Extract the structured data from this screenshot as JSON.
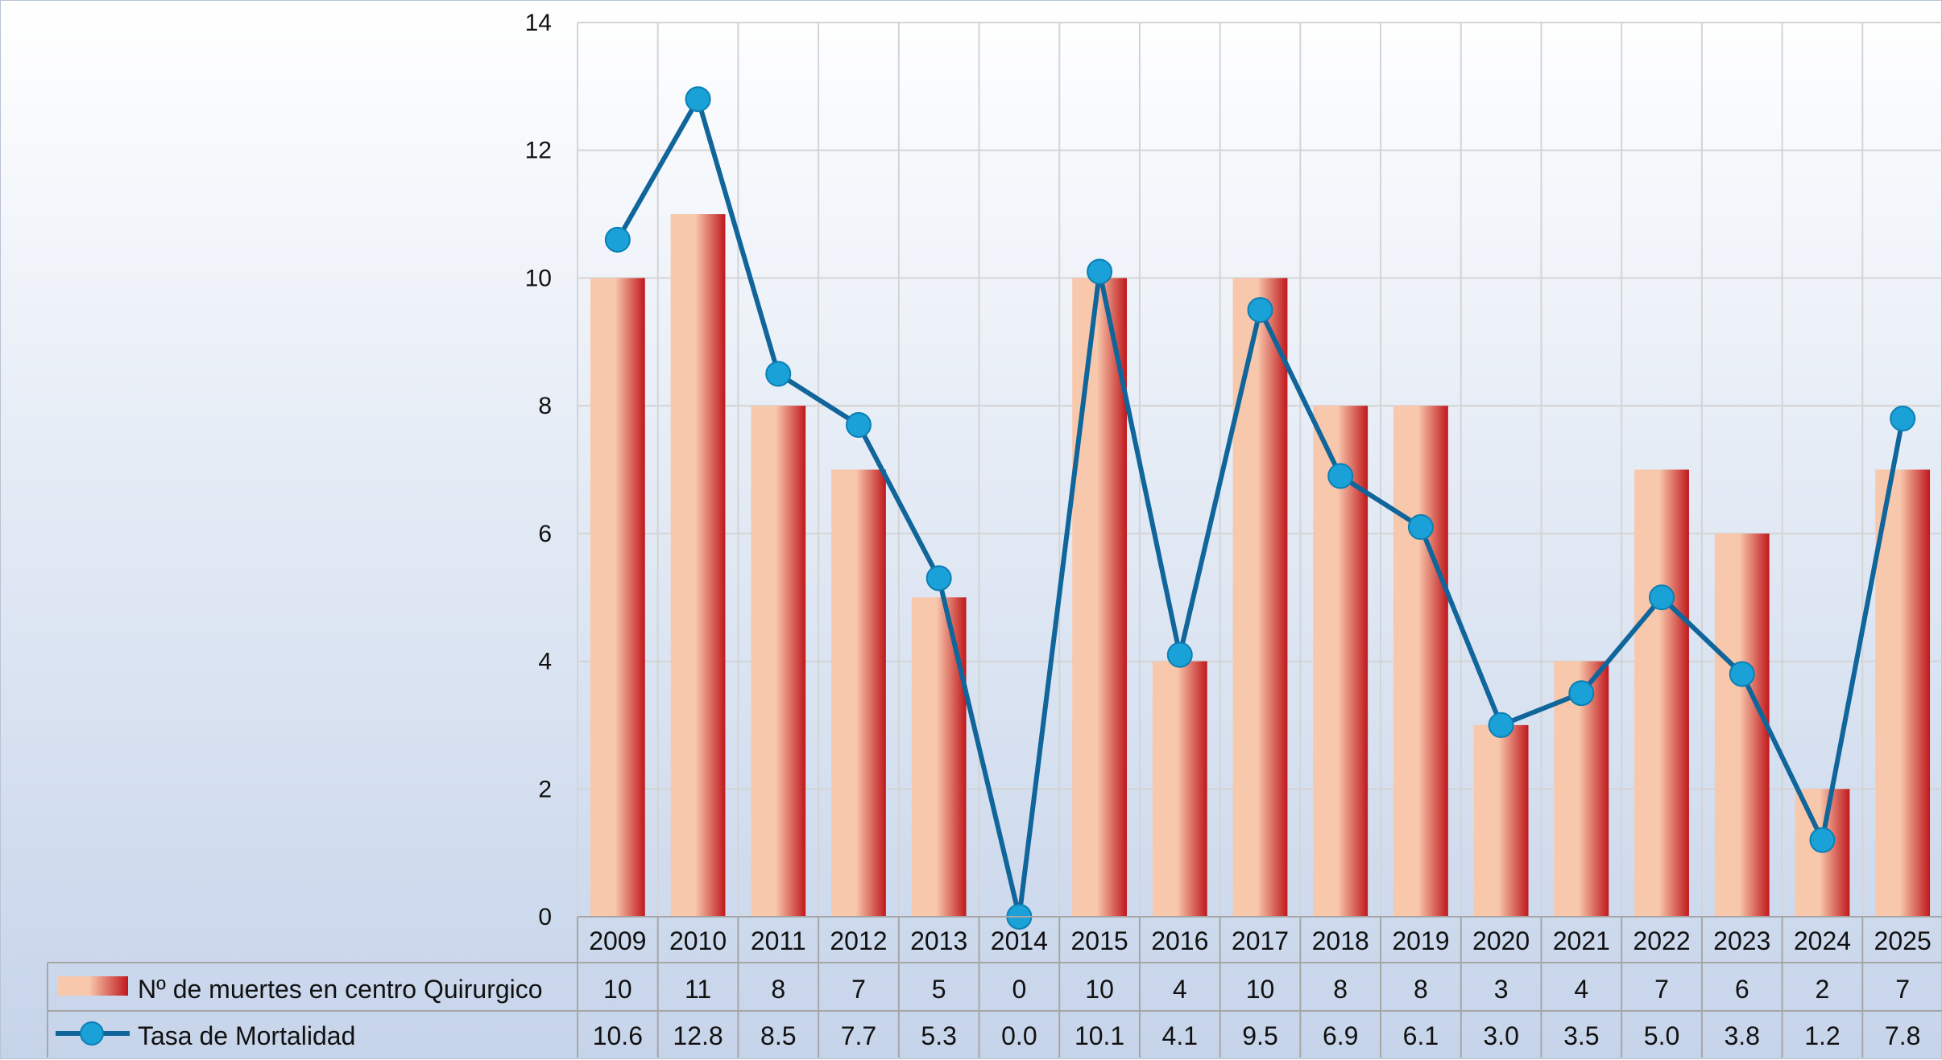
{
  "chart_data": {
    "type": "bar",
    "categories": [
      "2009",
      "2010",
      "2011",
      "2012",
      "2013",
      "2014",
      "2015",
      "2016",
      "2017",
      "2018",
      "2019",
      "2020",
      "2021",
      "2022",
      "2023",
      "2024",
      "2025"
    ],
    "series": [
      {
        "name": "Nº de muertes en centro Quirurgico",
        "type": "bar",
        "values": [
          10,
          11,
          8,
          7,
          5,
          0,
          10,
          4,
          10,
          8,
          8,
          3,
          4,
          7,
          6,
          2,
          7
        ],
        "labels": [
          "10",
          "11",
          "8",
          "7",
          "5",
          "0",
          "10",
          "4",
          "10",
          "8",
          "8",
          "3",
          "4",
          "7",
          "6",
          "2",
          "7"
        ],
        "color": "#c0181c",
        "color_light": "#f8c8ac"
      },
      {
        "name": "Tasa de Mortalidad",
        "type": "line",
        "values": [
          10.6,
          12.8,
          8.5,
          7.7,
          5.3,
          0.0,
          10.1,
          4.1,
          9.5,
          6.9,
          6.1,
          3.0,
          3.5,
          5.0,
          3.8,
          1.2,
          7.8
        ],
        "labels": [
          "10.6",
          "12.8",
          "8.5",
          "7.7",
          "5.3",
          "0.0",
          "10.1",
          "4.1",
          "9.5",
          "6.9",
          "6.1",
          "3.0",
          "3.5",
          "5.0",
          "3.8",
          "1.2",
          "7.8"
        ],
        "color": "#10659a",
        "marker_color": "#1aa1d8"
      }
    ],
    "title": "",
    "xlabel": "",
    "ylabel": "",
    "ylim": [
      0,
      14
    ],
    "yticks": [
      "0",
      "2",
      "4",
      "6",
      "8",
      "10",
      "12",
      "14"
    ],
    "grid": true,
    "legend": "data-table"
  }
}
